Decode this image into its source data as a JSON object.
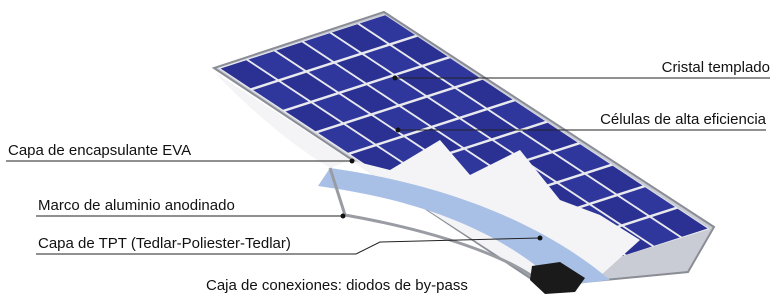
{
  "labels": [
    "Cristal templado",
    "Células de alta eficiencia",
    "Capa de encapsulante EVA",
    "Marco de aluminio anodinado",
    "Capa de TPT (Tedlar-Poliester-Tedlar)",
    "Caja de conexiones: diodos de by-pass"
  ]
}
